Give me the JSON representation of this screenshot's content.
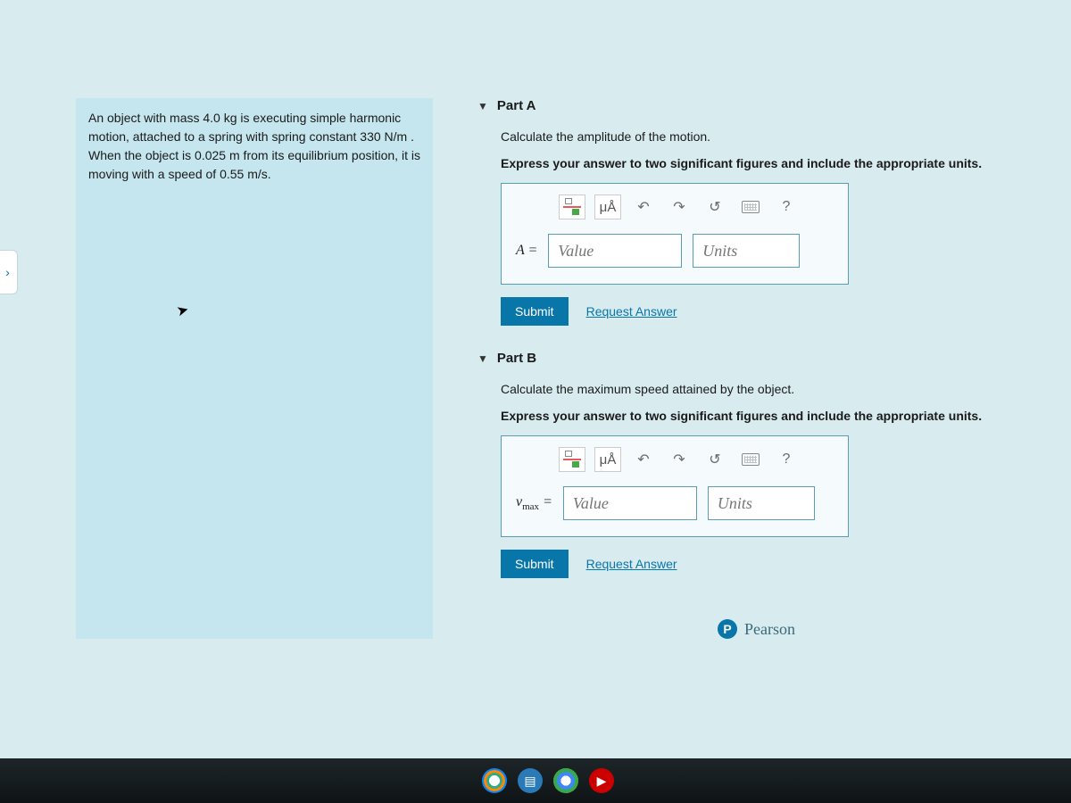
{
  "problem": {
    "text_parts": [
      "An object with mass 4.0 ",
      "kg",
      " is executing simple harmonic motion, attached to a spring with spring constant 330 ",
      "N/m",
      " . When the object is 0.025 ",
      "m",
      " from its equilibrium position, it is moving with a speed of 0.55 ",
      "m/s",
      "."
    ]
  },
  "partA": {
    "title": "Part A",
    "instruction": "Calculate the amplitude of the motion.",
    "instruction_bold": "Express your answer to two significant figures and include the appropriate units.",
    "var_label": "A =",
    "value_placeholder": "Value",
    "units_placeholder": "Units",
    "submit_label": "Submit",
    "request_label": "Request Answer",
    "mua_label": "μÅ"
  },
  "partB": {
    "title": "Part B",
    "instruction": "Calculate the maximum speed attained by the object.",
    "instruction_bold": "Express your answer to two significant figures and include the appropriate units.",
    "var_label_html": "v<sub>max</sub> =",
    "var_label_main": "v",
    "var_label_sub": "max",
    "var_label_suffix": " =",
    "value_placeholder": "Value",
    "units_placeholder": "Units",
    "submit_label": "Submit",
    "request_label": "Request Answer",
    "mua_label": "μÅ"
  },
  "brand": {
    "name": "Pearson",
    "logo_letter": "P"
  },
  "toolbar": {
    "help_label": "?"
  },
  "colors": {
    "page_bg": "#d8ecf0",
    "problem_bg": "#c5e6ee",
    "accent": "#0876a8",
    "border": "#5a9bb5"
  }
}
